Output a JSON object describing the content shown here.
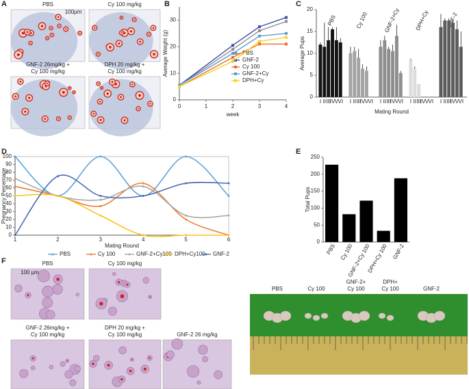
{
  "panel_labels": [
    "A",
    "B",
    "C",
    "D",
    "E",
    "F"
  ],
  "panel_a": {
    "images": [
      {
        "lines": [
          "PBS"
        ]
      },
      {
        "lines": [
          "Cy 100 mg/kg"
        ]
      },
      {
        "lines": [
          "GNF-2 26mg/kg +",
          "Cy 100 mg/kg"
        ]
      },
      {
        "lines": [
          "DPH 20 mg/kg +",
          "Cy 100 mg/kg"
        ]
      }
    ],
    "scale_bar": "100μm"
  },
  "chart_data": [
    {
      "type": "line",
      "y_label": "Average Weight (g)",
      "x_label": "week",
      "x": [
        0,
        2,
        3,
        4
      ],
      "xlim": [
        0,
        4
      ],
      "xticks": [
        0,
        1,
        2,
        3,
        4
      ],
      "ylim": [
        0,
        35
      ],
      "yticks": [
        0,
        10,
        20,
        30
      ],
      "legend": "right",
      "series": [
        {
          "name": "PBS",
          "color": "#8c8c8c",
          "values": [
            5.5,
            19,
            26,
            29.5
          ]
        },
        {
          "name": "GNF-2",
          "color": "#3a4fa0",
          "values": [
            5.5,
            20.5,
            27.5,
            31
          ]
        },
        {
          "name": "Cy 100",
          "color": "#f26b21",
          "values": [
            5,
            16,
            21,
            21
          ]
        },
        {
          "name": "GNF-2+Cy",
          "color": "#5b9bd5",
          "values": [
            5.5,
            17.5,
            24,
            25
          ]
        },
        {
          "name": "DPH+Cy",
          "color": "#f2d322",
          "values": [
            5,
            14.5,
            22,
            23.5
          ]
        }
      ]
    },
    {
      "type": "grouped-bar",
      "y_label": "Average Pups",
      "x_label": "Mating Round",
      "categories": [
        "I",
        "II",
        "III",
        "IV",
        "V",
        "VI"
      ],
      "ylim": [
        0,
        20
      ],
      "yticks": [
        0,
        5,
        10,
        15,
        20
      ],
      "groups": [
        {
          "name": "PBS",
          "color": "#151515",
          "values": [
            12,
            11.5,
            13,
            15.5,
            13,
            12.5
          ],
          "errors": [
            0.5,
            5.5,
            3,
            0.5,
            3,
            1
          ]
        },
        {
          "name": "Cy 100",
          "color": "#a3a3a3",
          "values": [
            10,
            10.5,
            9,
            6.5,
            6,
            null
          ],
          "errors": [
            1.5,
            1,
            2,
            1,
            1,
            null
          ]
        },
        {
          "name": "GNF-2+Cy",
          "color": "#8e8e8e",
          "values": [
            11.5,
            13,
            11,
            10.5,
            14,
            5.5
          ],
          "errors": [
            1.5,
            1,
            0.5,
            1.5,
            2.5,
            0.5
          ]
        },
        {
          "name": "DPH+Cy",
          "color": "#dcdcdc",
          "values": [
            8.5,
            6.5,
            3,
            null,
            null,
            null
          ],
          "errors": [
            0.3,
            0.5,
            null,
            null,
            null,
            null
          ]
        },
        {
          "name": "GNF-2",
          "color": "#5c5c5c",
          "values": [
            16,
            17.5,
            17.5,
            17,
            15.5,
            11.5
          ],
          "errors": [
            3,
            0.5,
            0.5,
            0.5,
            2,
            3.5
          ]
        }
      ]
    },
    {
      "type": "smooth-line",
      "y_label": "Pregnancy Percentage",
      "x_label": "Mating Round",
      "x": [
        1,
        2,
        3,
        4,
        5,
        6
      ],
      "xlim": [
        1,
        6
      ],
      "xticks": [
        1,
        2,
        3,
        4,
        5,
        6
      ],
      "ylim": [
        0,
        100
      ],
      "yticks": [
        0,
        10,
        20,
        30,
        40,
        50,
        60,
        70,
        80,
        90,
        100
      ],
      "legend": "bottom",
      "series": [
        {
          "name": "PBS",
          "color": "#5ba3d9",
          "values": [
            100,
            50,
            100,
            50,
            100,
            50
          ]
        },
        {
          "name": "Cy 100",
          "color": "#ee7d31",
          "values": [
            62,
            50,
            37,
            66,
            20,
            0
          ]
        },
        {
          "name": "GNF-2+Cy100",
          "color": "#a5a5a5",
          "values": [
            72,
            50,
            45,
            62,
            25,
            25
          ]
        },
        {
          "name": "DPH+Cy100",
          "color": "#fbc117",
          "values": [
            50,
            50,
            25,
            0,
            0,
            0
          ]
        },
        {
          "name": "GNF-2",
          "color": "#4a6bb5",
          "values": [
            0,
            75,
            50,
            50,
            66,
            66
          ]
        }
      ]
    },
    {
      "type": "bar",
      "y_label": "Total Pups",
      "categories": [
        "PBS",
        "Cy 100",
        "GNF-2+Cy 100",
        "DPH+Cy 100",
        "GNF-2"
      ],
      "values": [
        228,
        82,
        122,
        33,
        188
      ],
      "color": "#000000",
      "ylim": [
        0,
        250
      ],
      "yticks": [
        0,
        50,
        100,
        150,
        200,
        250
      ]
    }
  ],
  "panel_f": {
    "images": [
      {
        "lines": [
          "PBS"
        ]
      },
      {
        "lines": [
          "Cy 100 mg/kg"
        ]
      },
      {
        "lines": [
          "GNF-2 26mg/kg +",
          "Cy 100 mg/kg"
        ]
      },
      {
        "lines": [
          "DPH 20 mg/kg +",
          "Cy 100 mg/kg"
        ]
      },
      {
        "lines": [
          "GNF-2 26 mg/kg"
        ]
      }
    ],
    "scale_bar": "100 μm",
    "photo_labels": [
      {
        "lines": [
          "PBS"
        ]
      },
      {
        "lines": [
          "Cy 100"
        ]
      },
      {
        "lines": [
          "GNF-2+",
          "Cy 100"
        ]
      },
      {
        "lines": [
          "DPH+",
          "Cy 100"
        ]
      },
      {
        "lines": [
          "GNF-2"
        ]
      }
    ]
  }
}
